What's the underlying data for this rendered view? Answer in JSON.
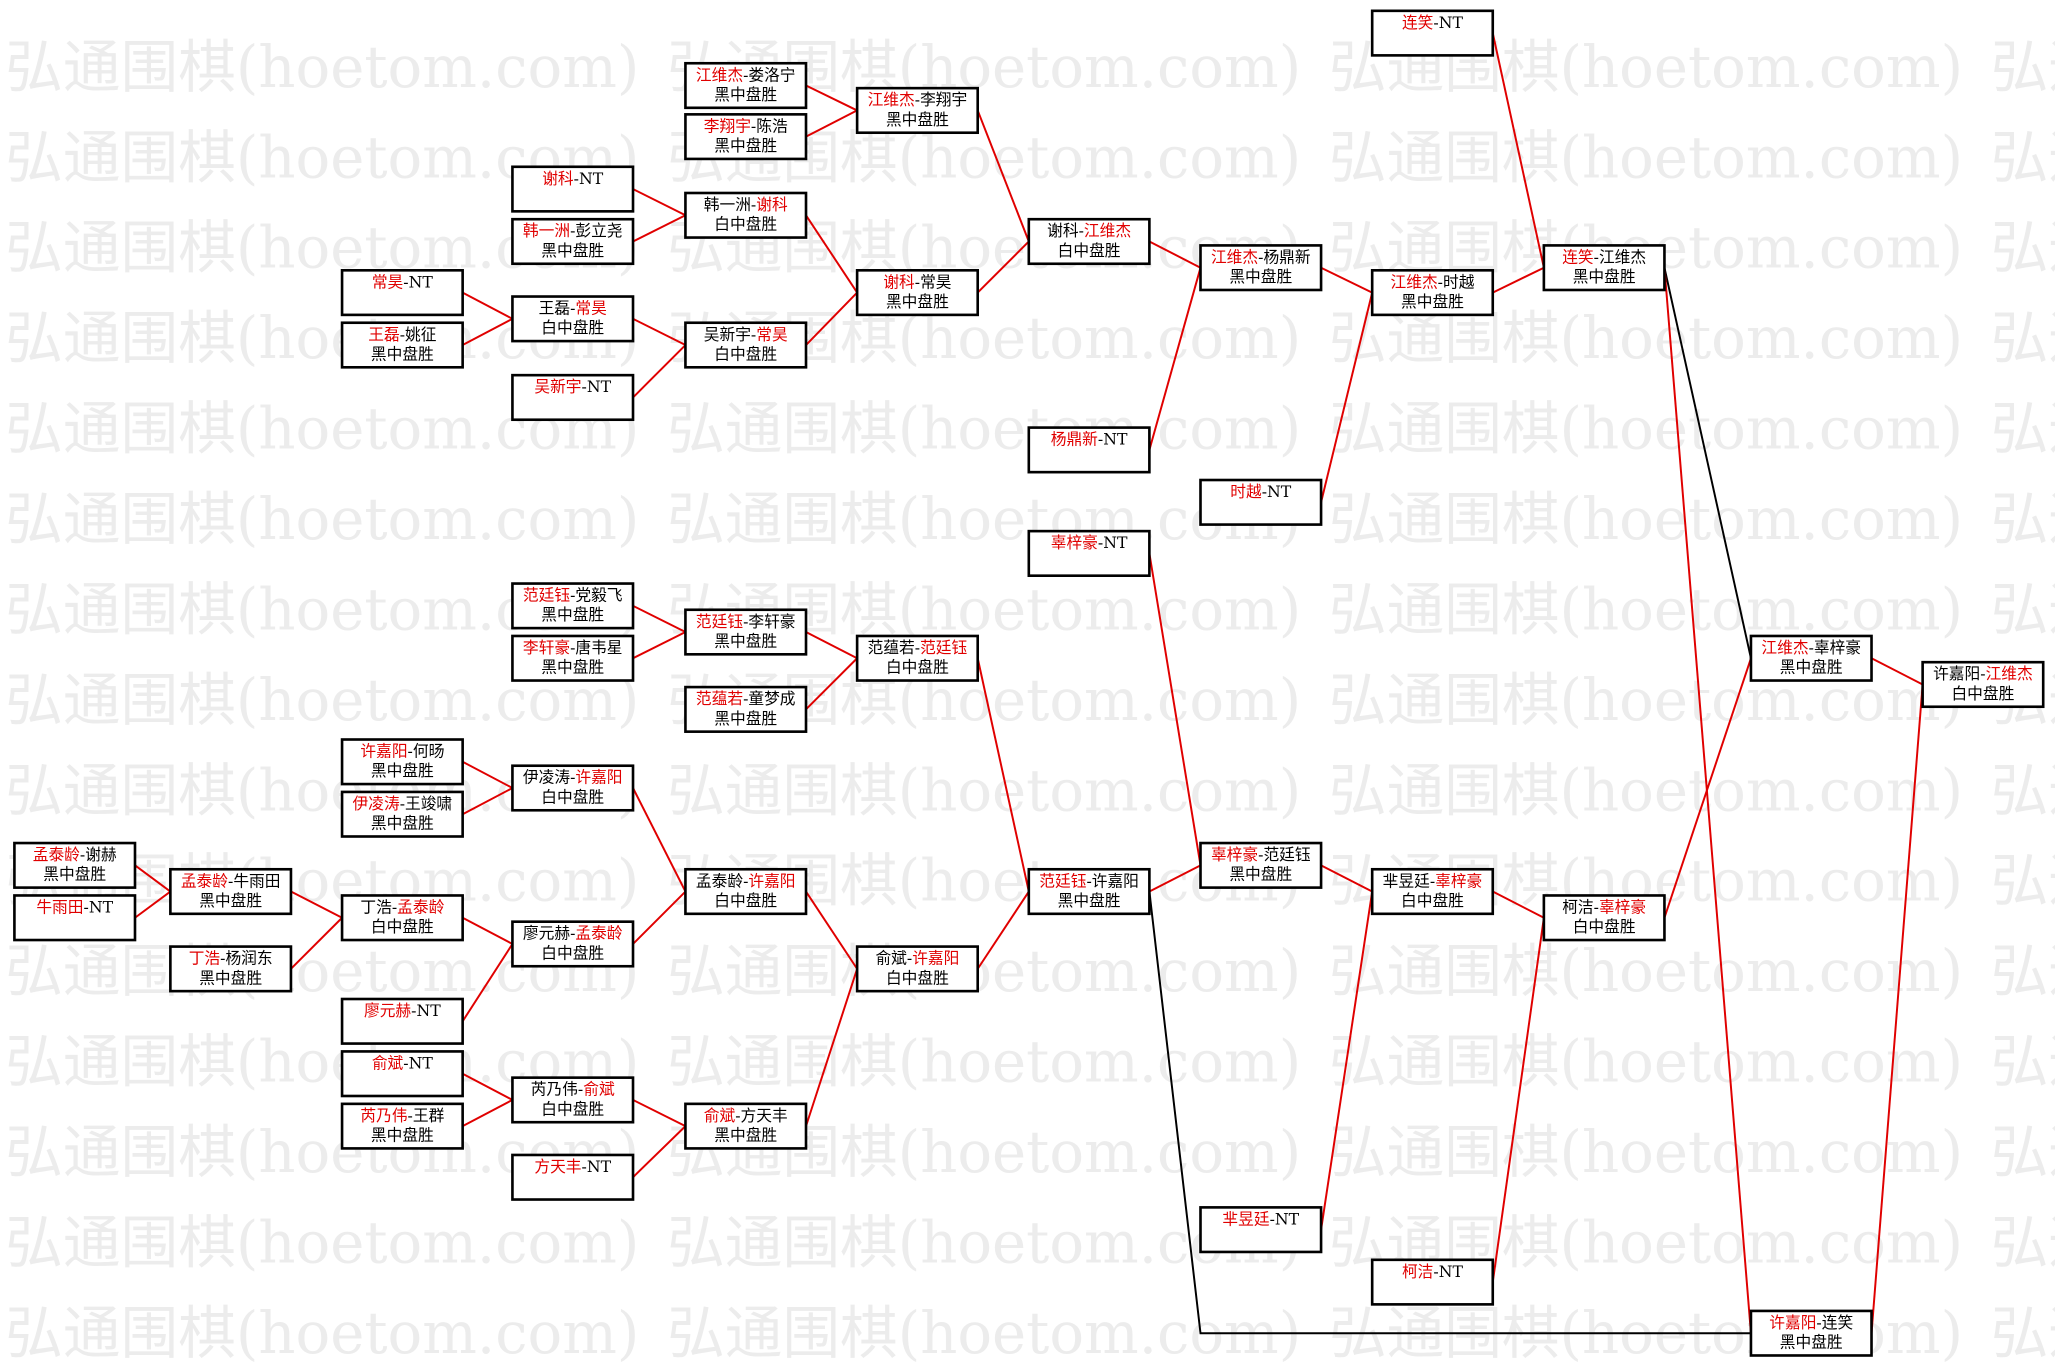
{
  "watermark": "弘通围棋(hoetom.com)",
  "colors": {
    "winner": "#e00000",
    "text": "#000000",
    "line_main": "#e00000",
    "line_alt": "#000000",
    "watermark": "#ececec"
  },
  "boxes": [
    {
      "id": "A1",
      "p1": "江维杰",
      "p2": "娄洛宁",
      "winner": 1,
      "result": "黑中盘胜"
    },
    {
      "id": "A2",
      "p1": "李翔宇",
      "p2": "陈浩",
      "winner": 1,
      "result": "黑中盘胜"
    },
    {
      "id": "B1",
      "p1": "江维杰",
      "p2": "李翔宇",
      "winner": 1,
      "result": "黑中盘胜"
    },
    {
      "id": "C1",
      "p1": "谢科",
      "p2": "NT",
      "winner": 1,
      "result": ""
    },
    {
      "id": "C2",
      "p1": "韩一洲",
      "p2": "彭立尧",
      "winner": 1,
      "result": "黑中盘胜"
    },
    {
      "id": "C3",
      "p1": "韩一洲",
      "p2": "谢科",
      "winner": 2,
      "result": "白中盘胜"
    },
    {
      "id": "D1",
      "p1": "常昊",
      "p2": "NT",
      "winner": 1,
      "result": ""
    },
    {
      "id": "D2",
      "p1": "王磊",
      "p2": "姚征",
      "winner": 1,
      "result": "黑中盘胜"
    },
    {
      "id": "D3",
      "p1": "王磊",
      "p2": "常昊",
      "winner": 2,
      "result": "白中盘胜"
    },
    {
      "id": "D4",
      "p1": "吴新宇",
      "p2": "NT",
      "winner": 1,
      "result": ""
    },
    {
      "id": "D5",
      "p1": "吴新宇",
      "p2": "常昊",
      "winner": 2,
      "result": "白中盘胜"
    },
    {
      "id": "B2",
      "p1": "谢科",
      "p2": "常昊",
      "winner": 1,
      "result": "黑中盘胜"
    },
    {
      "id": "E1",
      "p1": "谢科",
      "p2": "江维杰",
      "winner": 2,
      "result": "白中盘胜"
    },
    {
      "id": "E2",
      "p1": "杨鼎新",
      "p2": "NT",
      "winner": 1,
      "result": ""
    },
    {
      "id": "F1",
      "p1": "江维杰",
      "p2": "杨鼎新",
      "winner": 1,
      "result": "黑中盘胜"
    },
    {
      "id": "F2",
      "p1": "时越",
      "p2": "NT",
      "winner": 1,
      "result": ""
    },
    {
      "id": "G1",
      "p1": "连笑",
      "p2": "NT",
      "winner": 1,
      "result": ""
    },
    {
      "id": "G2",
      "p1": "江维杰",
      "p2": "时越",
      "winner": 1,
      "result": "黑中盘胜"
    },
    {
      "id": "H1",
      "p1": "连笑",
      "p2": "江维杰",
      "winner": 1,
      "result": "黑中盘胜"
    },
    {
      "id": "L1",
      "p1": "范廷钰",
      "p2": "党毅飞",
      "winner": 1,
      "result": "黑中盘胜"
    },
    {
      "id": "L2",
      "p1": "李轩豪",
      "p2": "唐韦星",
      "winner": 1,
      "result": "黑中盘胜"
    },
    {
      "id": "L3",
      "p1": "范廷钰",
      "p2": "李轩豪",
      "winner": 1,
      "result": "黑中盘胜"
    },
    {
      "id": "L4",
      "p1": "范蕴若",
      "p2": "童梦成",
      "winner": 1,
      "result": "黑中盘胜"
    },
    {
      "id": "L5",
      "p1": "范蕴若",
      "p2": "范廷钰",
      "winner": 2,
      "result": "白中盘胜"
    },
    {
      "id": "M1",
      "p1": "许嘉阳",
      "p2": "何旸",
      "winner": 1,
      "result": "黑中盘胜"
    },
    {
      "id": "M2",
      "p1": "伊凌涛",
      "p2": "王竣啸",
      "winner": 1,
      "result": "黑中盘胜"
    },
    {
      "id": "M3",
      "p1": "伊凌涛",
      "p2": "许嘉阳",
      "winner": 2,
      "result": "白中盘胜"
    },
    {
      "id": "N1",
      "p1": "孟泰龄",
      "p2": "谢赫",
      "winner": 1,
      "result": "黑中盘胜"
    },
    {
      "id": "N2",
      "p1": "牛雨田",
      "p2": "NT",
      "winner": 1,
      "result": ""
    },
    {
      "id": "N3",
      "p1": "孟泰龄",
      "p2": "牛雨田",
      "winner": 1,
      "result": "黑中盘胜"
    },
    {
      "id": "N4",
      "p1": "丁浩",
      "p2": "杨润东",
      "winner": 1,
      "result": "黑中盘胜"
    },
    {
      "id": "N5",
      "p1": "丁浩",
      "p2": "孟泰龄",
      "winner": 2,
      "result": "白中盘胜"
    },
    {
      "id": "N6",
      "p1": "廖元赫",
      "p2": "NT",
      "winner": 1,
      "result": ""
    },
    {
      "id": "N7",
      "p1": "廖元赫",
      "p2": "孟泰龄",
      "winner": 2,
      "result": "白中盘胜"
    },
    {
      "id": "N8",
      "p1": "孟泰龄",
      "p2": "许嘉阳",
      "winner": 2,
      "result": "白中盘胜"
    },
    {
      "id": "P1",
      "p1": "俞斌",
      "p2": "NT",
      "winner": 1,
      "result": ""
    },
    {
      "id": "P2",
      "p1": "芮乃伟",
      "p2": "王群",
      "winner": 1,
      "result": "黑中盘胜"
    },
    {
      "id": "P3",
      "p1": "芮乃伟",
      "p2": "俞斌",
      "winner": 2,
      "result": "白中盘胜"
    },
    {
      "id": "P4",
      "p1": "方天丰",
      "p2": "NT",
      "winner": 1,
      "result": ""
    },
    {
      "id": "P5",
      "p1": "俞斌",
      "p2": "方天丰",
      "winner": 1,
      "result": "黑中盘胜"
    },
    {
      "id": "P6",
      "p1": "俞斌",
      "p2": "许嘉阳",
      "winner": 2,
      "result": "白中盘胜"
    },
    {
      "id": "Q1",
      "p1": "范廷钰",
      "p2": "许嘉阳",
      "winner": 1,
      "result": "黑中盘胜"
    },
    {
      "id": "R1",
      "p1": "辜梓豪",
      "p2": "NT",
      "winner": 1,
      "result": ""
    },
    {
      "id": "R2",
      "p1": "辜梓豪",
      "p2": "范廷钰",
      "winner": 1,
      "result": "黑中盘胜"
    },
    {
      "id": "R3",
      "p1": "芈昱廷",
      "p2": "NT",
      "winner": 1,
      "result": ""
    },
    {
      "id": "R4",
      "p1": "芈昱廷",
      "p2": "辜梓豪",
      "winner": 2,
      "result": "白中盘胜"
    },
    {
      "id": "R5",
      "p1": "柯洁",
      "p2": "NT",
      "winner": 1,
      "result": ""
    },
    {
      "id": "R6",
      "p1": "柯洁",
      "p2": "辜梓豪",
      "winner": 2,
      "result": "白中盘胜"
    },
    {
      "id": "S1",
      "p1": "江维杰",
      "p2": "辜梓豪",
      "winner": 1,
      "result": "黑中盘胜"
    },
    {
      "id": "S2",
      "p1": "许嘉阳",
      "p2": "连笑",
      "winner": 1,
      "result": "黑中盘胜"
    },
    {
      "id": "T1",
      "p1": "许嘉阳",
      "p2": "江维杰",
      "winner": 2,
      "result": "白中盘胜"
    }
  ]
}
